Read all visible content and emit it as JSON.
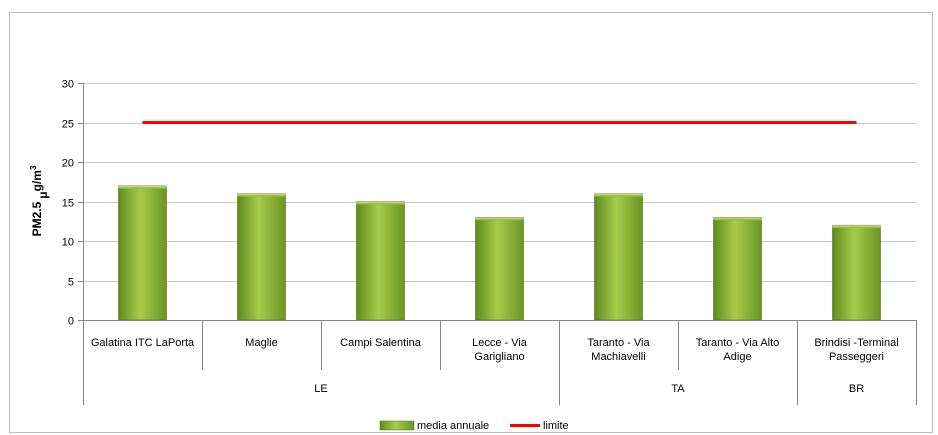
{
  "chart_data": {
    "type": "bar",
    "categories": [
      "Galatina ITC LaPorta",
      "Maglie",
      "Campi Salentina",
      "Lecce - Via Garigliano",
      "Taranto - Via Machiavelli",
      "Taranto - Via Alto Adige",
      "Brindisi -Terminal Passeggeri"
    ],
    "category_lines": [
      [
        "Galatina ITC LaPorta"
      ],
      [
        "Maglie"
      ],
      [
        "Campi Salentina"
      ],
      [
        "Lecce - Via",
        "Garigliano"
      ],
      [
        "Taranto - Via",
        "Machiavelli"
      ],
      [
        "Taranto - Via Alto",
        "Adige"
      ],
      [
        "Brindisi -Terminal",
        "Passeggeri"
      ]
    ],
    "groups": [
      {
        "label": "LE",
        "count": 4
      },
      {
        "label": "TA",
        "count": 2
      },
      {
        "label": "BR",
        "count": 1
      }
    ],
    "series": [
      {
        "name": "media annuale",
        "type": "bar",
        "values": [
          17,
          16,
          15,
          13,
          16,
          13,
          12
        ],
        "color": "#8db33a"
      },
      {
        "name": "limite",
        "type": "line",
        "values": [
          25,
          25,
          25,
          25,
          25,
          25,
          25
        ],
        "color": "#ff0000"
      }
    ],
    "ylabel_main": "PM2.5",
    "ylabel_unit_mu": "μ",
    "ylabel_unit_rest": "g/m",
    "ylabel_unit_sup": "3",
    "ylim": [
      0,
      30
    ],
    "yticks": [
      0,
      5,
      10,
      15,
      20,
      25,
      30
    ],
    "grid": true,
    "legend_position": "bottom"
  }
}
